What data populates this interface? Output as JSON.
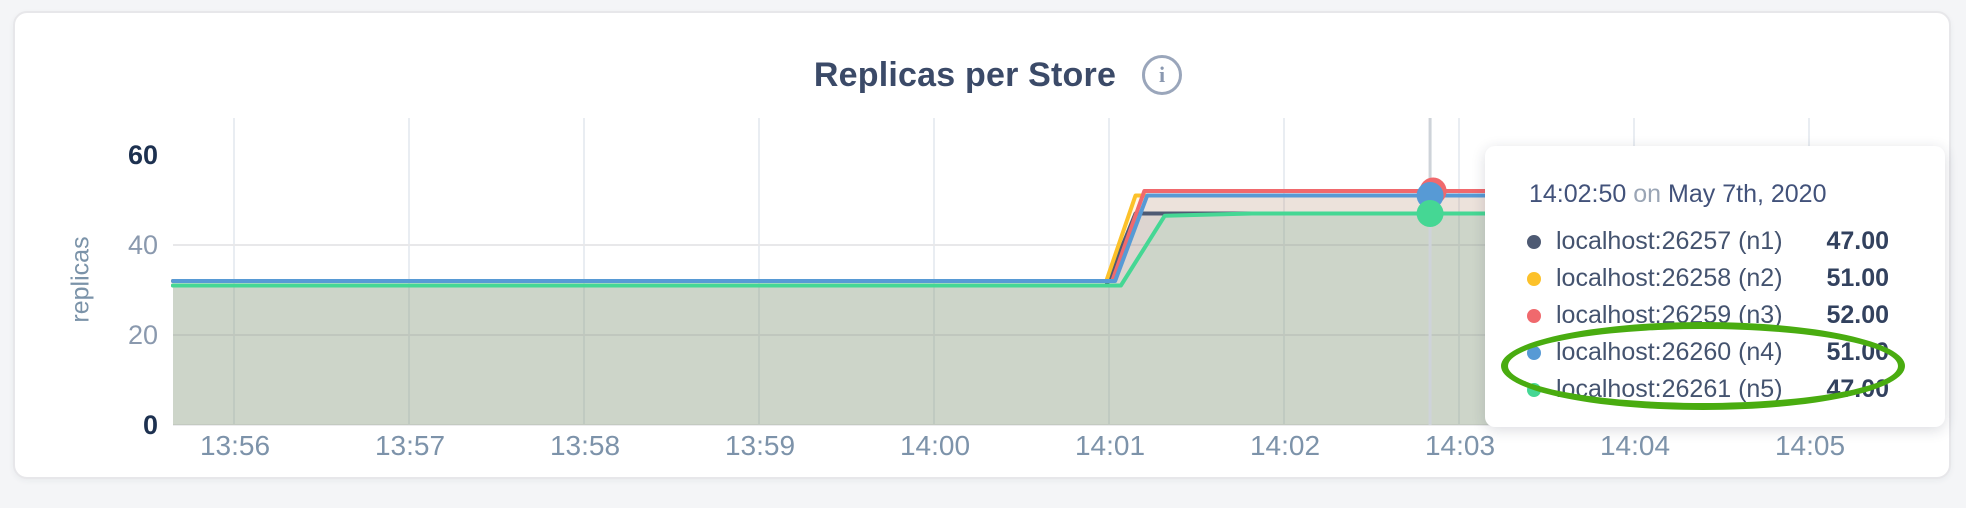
{
  "header": {
    "title": "Replicas per Store",
    "info_icon_glyph": "i"
  },
  "chart_data": {
    "type": "area",
    "title": "Replicas per Store",
    "ylabel": "replicas",
    "ylim": [
      0,
      60
    ],
    "yticks": [
      "0",
      "20",
      "40",
      "60"
    ],
    "xticks": [
      "13:56",
      "13:57",
      "13:58",
      "13:59",
      "14:00",
      "14:01",
      "14:02",
      "14:03",
      "14:04",
      "14:05"
    ],
    "x_window_start": "13:55:39",
    "x_window_end": "14:05:43",
    "grid": "on",
    "fill_opacity": 0.1,
    "series": [
      {
        "name": "localhost:26257 (n1)",
        "color": "#4e5a73",
        "points": [
          [
            0,
            31
          ],
          [
            320,
            31
          ],
          [
            330,
            47
          ],
          [
            604,
            47
          ]
        ]
      },
      {
        "name": "localhost:26258 (n2)",
        "color": "#fcc12a",
        "points": [
          [
            0,
            32
          ],
          [
            320,
            32
          ],
          [
            330,
            51
          ],
          [
            604,
            51
          ]
        ]
      },
      {
        "name": "localhost:26259 (n3)",
        "color": "#f0696d",
        "points": [
          [
            0,
            32
          ],
          [
            322,
            32
          ],
          [
            333,
            52
          ],
          [
            604,
            52
          ]
        ]
      },
      {
        "name": "localhost:26260 (n4)",
        "color": "#579ad5",
        "points": [
          [
            0,
            32
          ],
          [
            323,
            32
          ],
          [
            334,
            51
          ],
          [
            604,
            51
          ]
        ]
      },
      {
        "name": "localhost:26261 (n5)",
        "color": "#45d794",
        "points": [
          [
            0,
            31
          ],
          [
            325,
            31
          ],
          [
            340,
            46.5
          ],
          [
            370,
            47
          ],
          [
            604,
            47
          ]
        ]
      }
    ],
    "hover": {
      "time": "14:02:50",
      "t": 431,
      "dots": [
        {
          "series": 2,
          "value": 52,
          "dx": 3
        },
        {
          "series": 3,
          "value": 51,
          "dx": 0
        },
        {
          "series": 4,
          "value": 47,
          "dx": 0
        }
      ]
    }
  },
  "tooltip": {
    "time": "14:02:50",
    "conjunction": "on",
    "date": "May 7th, 2020",
    "rows": [
      {
        "label": "localhost:26257 (n1)",
        "value": "47.00",
        "color": "#4e5a73"
      },
      {
        "label": "localhost:26258 (n2)",
        "value": "51.00",
        "color": "#fcc12a"
      },
      {
        "label": "localhost:26259 (n3)",
        "value": "52.00",
        "color": "#f0696d"
      },
      {
        "label": "localhost:26260 (n4)",
        "value": "51.00",
        "color": "#579ad5"
      },
      {
        "label": "localhost:26261 (n5)",
        "value": "47.00",
        "color": "#45d794"
      }
    ]
  },
  "annotation": {
    "shape": "ellipse",
    "color": "#49ac10"
  },
  "colors": {
    "page_background": "#f4f5f7",
    "card_background": "#ffffff",
    "grid_vertical": "#e9edf2",
    "grid_horizontal": "#e8e8ea",
    "hover_line": "#ced3d9",
    "title_text": "#3b4a68",
    "axis_text": "#7d93aa"
  }
}
